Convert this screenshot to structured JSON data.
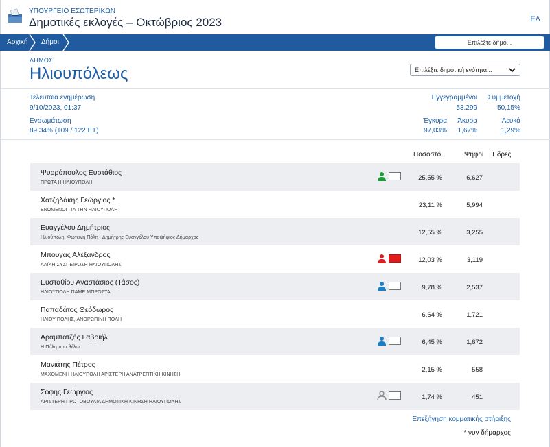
{
  "header": {
    "ministry": "ΥΠΟΥΡΓΕΙΟ ΕΣΩΤΕΡΙΚΩΝ",
    "title": "Δημοτικές εκλογές – Οκτώβριος 2023",
    "lang": "ΕΛ",
    "logo_icon": "ballot-box-icon"
  },
  "nav": {
    "home": "Αρχική",
    "municipalities": "Δήμοι",
    "select_municipality": "Επιλέξτε δήμο..."
  },
  "municipality": {
    "label": "ΔΗΜΟΣ",
    "name": "Ηλιουπόλεως",
    "unit_select": "Επιλέξτε δημοτική ενότητα..."
  },
  "stats": {
    "last_update_label": "Τελευταία ενημέρωση",
    "last_update_value": "9/10/2023, 01:37",
    "integration_label": "Ενσωμάτωση",
    "integration_value": "89,34% (109 / 122 ΕΤ)",
    "registered_label": "Εγγεγραμμένοι",
    "registered_value": "53.299",
    "turnout_label": "Συμμετοχή",
    "turnout_value": "50,15%",
    "valid_label": "Έγκυρα",
    "valid_value": "97,03%",
    "invalid_label": "Άκυρα",
    "invalid_value": "1,67%",
    "blank_label": "Λευκά",
    "blank_value": "1,29%"
  },
  "table": {
    "headers": {
      "percent": "Ποσοστό",
      "votes": "Ψήφοι",
      "seats": "Έδρες"
    },
    "rows": [
      {
        "candidate": "Ψυρρόπουλος Ευστάθιος",
        "party": "ΠΡΩΤΑ Η ΗΛΙΟΥΠΟΛΗ",
        "percent": "25,55 %",
        "votes": "6,627",
        "support_color": "#1f9a3a",
        "flag": "white"
      },
      {
        "candidate": "Χατζηδάκης Γεώργιος *",
        "party": "ΕΝΩΜΕΝΟΙ ΓΙΑ ΤΗΝ ΗΛΙΟΥΠΟΛΗ",
        "percent": "23,11 %",
        "votes": "5,994",
        "support_color": "",
        "flag": ""
      },
      {
        "candidate": "Ευαγγέλου Δημήτριος",
        "party": "Ηλιούπολη, Φωτεινή Πόλη - Δημήτρης Ευαγγέλου Υποψήφιος Δήμαρχος",
        "percent": "12,55 %",
        "votes": "3,255",
        "support_color": "",
        "flag": ""
      },
      {
        "candidate": "Μπουγάς Αλέξανδρος",
        "party": "ΛΑΪΚΗ ΣΥΣΠΕΙΡΩΣΗ ΗΛΙΟΥΠΟΛΗΣ",
        "percent": "12,03 %",
        "votes": "3,119",
        "support_color": "#d42222",
        "flag": "red"
      },
      {
        "candidate": "Ευσταθίου Αναστάσιος (Τάσος)",
        "party": "ΗΛΙΟΥΠΟΛΗ ΠΑΜΕ ΜΠΡΟΣΤΑ",
        "percent": "9,78 %",
        "votes": "2,537",
        "support_color": "#1a7fc4",
        "flag": "white"
      },
      {
        "candidate": "Παπαδάτος Θεόδωρος",
        "party": "ΗΛΙΟΥ-ΠΟΛΗΣ, ΑΝΘΡΩΠΙΝΗ ΠΟΛΗ",
        "percent": "6,64 %",
        "votes": "1,721",
        "support_color": "",
        "flag": ""
      },
      {
        "candidate": "Αραμπατζής Γαβριήλ",
        "party": "Η Πόλη που θέλω",
        "percent": "6,45 %",
        "votes": "1,672",
        "support_color": "#1a7fc4",
        "flag": "white"
      },
      {
        "candidate": "Μανιάτης Πέτρος",
        "party": "ΜΑΧΟΜΕΝΗ ΗΛΙΟΥΠΟΛΗ ΑΡΙΣΤΕΡΗ ΑΝΑΤΡΕΠΤΙΚΗ ΚΙΝΗΣΗ",
        "percent": "2,15 %",
        "votes": "558",
        "support_color": "",
        "flag": ""
      },
      {
        "candidate": "Σόφης Γεώργιος",
        "party": "ΑΡΙΣΤΕΡΗ ΠΡΩΤΟΒΟΥΛΙΑ ΔΗΜΟΤΙΚΗ ΚΙΝΗΣΗ ΗΛΙΟΥΠΟΛΗΣ",
        "percent": "1,74 %",
        "votes": "451",
        "support_color": "#8a8a8a",
        "flag": "white"
      }
    ]
  },
  "footer": {
    "support_link": "Επεξήγηση κομματικής στήριξης",
    "note": "* νυν δήμαρχος"
  }
}
